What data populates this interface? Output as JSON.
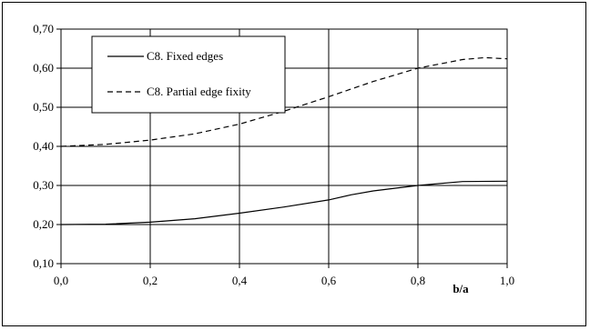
{
  "chart_data": {
    "type": "line",
    "xlabel": "b/a",
    "ylabel": "",
    "xlim": [
      0.0,
      1.0
    ],
    "ylim": [
      0.1,
      0.7
    ],
    "x_ticks": [
      "0,0",
      "0,2",
      "0,4",
      "0,6",
      "0,8",
      "1,0"
    ],
    "y_ticks": [
      "0,10",
      "0,20",
      "0,30",
      "0,40",
      "0,50",
      "0,60",
      "0,70"
    ],
    "x_tick_values": [
      0.0,
      0.2,
      0.4,
      0.6,
      0.8,
      1.0
    ],
    "y_tick_values": [
      0.1,
      0.2,
      0.3,
      0.4,
      0.5,
      0.6,
      0.7
    ],
    "grid": true,
    "legend_position": "top-left",
    "series": [
      {
        "name": "C8. Fixed edges",
        "style": "solid",
        "color": "#000000",
        "x": [
          0.0,
          0.1,
          0.2,
          0.3,
          0.4,
          0.5,
          0.6,
          0.65,
          0.7,
          0.8,
          0.9,
          1.0
        ],
        "y": [
          0.2,
          0.201,
          0.206,
          0.215,
          0.229,
          0.245,
          0.263,
          0.276,
          0.286,
          0.3,
          0.31,
          0.311
        ]
      },
      {
        "name": "C8. Partial edge fixity",
        "style": "dashed",
        "color": "#000000",
        "x": [
          0.0,
          0.1,
          0.2,
          0.3,
          0.4,
          0.5,
          0.6,
          0.7,
          0.8,
          0.9,
          0.95,
          1.0
        ],
        "y": [
          0.4,
          0.405,
          0.416,
          0.432,
          0.457,
          0.49,
          0.527,
          0.566,
          0.6,
          0.622,
          0.627,
          0.624
        ]
      }
    ]
  }
}
